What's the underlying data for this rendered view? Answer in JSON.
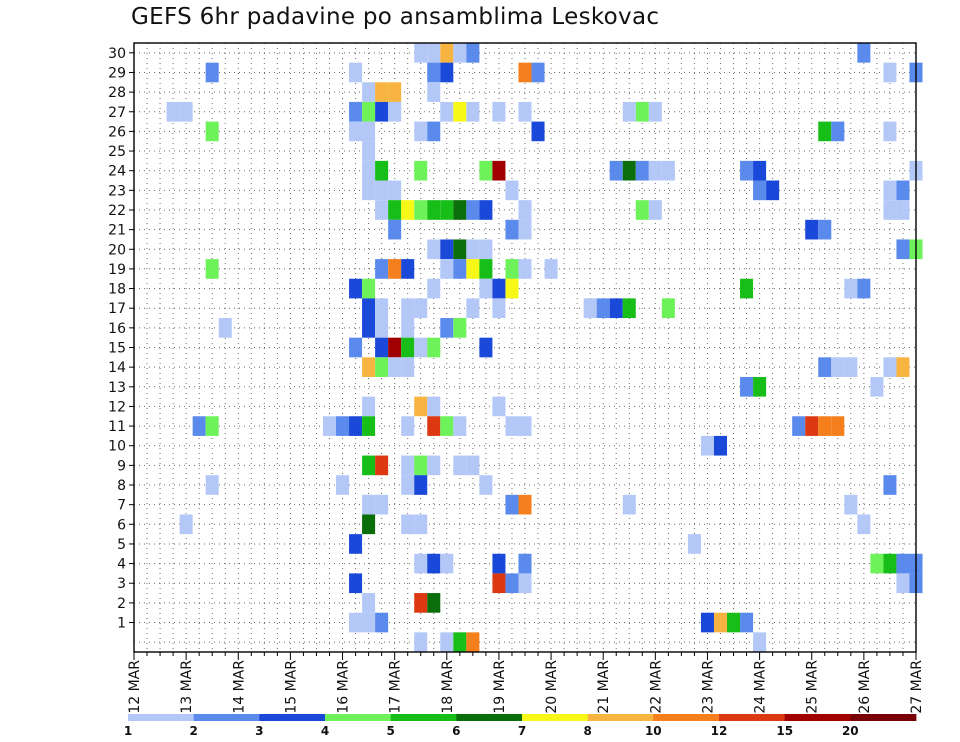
{
  "chart_data": {
    "type": "heatmap",
    "title": "GEFS 6hr padavine po ansamblima Leskovac",
    "xlabel": "",
    "ylabel": "",
    "x_ticks": [
      "12 MAR",
      "13 MAR",
      "14 MAR",
      "15 MAR",
      "16 MAR",
      "17 MAR",
      "18 MAR",
      "19 MAR",
      "20 MAR",
      "21 MAR",
      "22 MAR",
      "23 MAR",
      "24 MAR",
      "25 MAR",
      "26 MAR",
      "27 MAR"
    ],
    "x_range_steps": [
      0,
      60
    ],
    "steps_per_day": 4,
    "members": [
      1,
      2,
      3,
      4,
      5,
      6,
      7,
      8,
      9,
      10,
      11,
      12,
      13,
      14,
      15,
      16,
      17,
      18,
      19,
      20,
      21,
      22,
      23,
      24,
      25,
      26,
      27,
      28,
      29,
      30
    ],
    "grid": true,
    "colorbar": {
      "position": "bottom",
      "labels": [
        "1",
        "2",
        "3",
        "4",
        "5",
        "6",
        "7",
        "8",
        "10",
        "12",
        "15",
        "20"
      ],
      "colors": [
        "#b4c8f8",
        "#5a8aec",
        "#1a48d8",
        "#6ef25a",
        "#18be18",
        "#0a6e0a",
        "#f8f818",
        "#f8b440",
        "#f47f1c",
        "#dc3812",
        "#a00000",
        "#7a0008"
      ]
    },
    "cells": [
      {
        "member": 30,
        "step": 22,
        "cls": 1
      },
      {
        "member": 30,
        "step": 23,
        "cls": 1
      },
      {
        "member": 30,
        "step": 24,
        "cls": 8
      },
      {
        "member": 30,
        "step": 25,
        "cls": 1
      },
      {
        "member": 30,
        "step": 26,
        "cls": 2
      },
      {
        "member": 30,
        "step": 56,
        "cls": 2
      },
      {
        "member": 29,
        "step": 6,
        "cls": 2
      },
      {
        "member": 29,
        "step": 17,
        "cls": 1
      },
      {
        "member": 29,
        "step": 23,
        "cls": 2
      },
      {
        "member": 29,
        "step": 24,
        "cls": 3
      },
      {
        "member": 29,
        "step": 30,
        "cls": 9
      },
      {
        "member": 29,
        "step": 31,
        "cls": 2
      },
      {
        "member": 29,
        "step": 58,
        "cls": 1
      },
      {
        "member": 29,
        "step": 60,
        "cls": 2
      },
      {
        "member": 28,
        "step": 18,
        "cls": 1
      },
      {
        "member": 28,
        "step": 19,
        "cls": 8
      },
      {
        "member": 28,
        "step": 20,
        "cls": 8
      },
      {
        "member": 28,
        "step": 23,
        "cls": 1
      },
      {
        "member": 27,
        "step": 3,
        "cls": 1
      },
      {
        "member": 27,
        "step": 4,
        "cls": 1
      },
      {
        "member": 27,
        "step": 17,
        "cls": 2
      },
      {
        "member": 27,
        "step": 18,
        "cls": 4
      },
      {
        "member": 27,
        "step": 19,
        "cls": 3
      },
      {
        "member": 27,
        "step": 20,
        "cls": 1
      },
      {
        "member": 27,
        "step": 24,
        "cls": 1
      },
      {
        "member": 27,
        "step": 25,
        "cls": 7
      },
      {
        "member": 27,
        "step": 26,
        "cls": 1
      },
      {
        "member": 27,
        "step": 28,
        "cls": 1
      },
      {
        "member": 27,
        "step": 30,
        "cls": 1
      },
      {
        "member": 27,
        "step": 38,
        "cls": 1
      },
      {
        "member": 27,
        "step": 39,
        "cls": 4
      },
      {
        "member": 27,
        "step": 40,
        "cls": 1
      },
      {
        "member": 26,
        "step": 6,
        "cls": 4
      },
      {
        "member": 26,
        "step": 17,
        "cls": 1
      },
      {
        "member": 26,
        "step": 18,
        "cls": 1
      },
      {
        "member": 26,
        "step": 22,
        "cls": 1
      },
      {
        "member": 26,
        "step": 23,
        "cls": 2
      },
      {
        "member": 26,
        "step": 31,
        "cls": 3
      },
      {
        "member": 26,
        "step": 53,
        "cls": 5
      },
      {
        "member": 26,
        "step": 54,
        "cls": 2
      },
      {
        "member": 26,
        "step": 58,
        "cls": 1
      },
      {
        "member": 25,
        "step": 18,
        "cls": 1
      },
      {
        "member": 24,
        "step": 18,
        "cls": 1
      },
      {
        "member": 24,
        "step": 19,
        "cls": 5
      },
      {
        "member": 24,
        "step": 22,
        "cls": 4
      },
      {
        "member": 24,
        "step": 27,
        "cls": 4
      },
      {
        "member": 24,
        "step": 28,
        "cls": 11
      },
      {
        "member": 24,
        "step": 37,
        "cls": 2
      },
      {
        "member": 24,
        "step": 38,
        "cls": 6
      },
      {
        "member": 24,
        "step": 39,
        "cls": 2
      },
      {
        "member": 24,
        "step": 40,
        "cls": 1
      },
      {
        "member": 24,
        "step": 41,
        "cls": 1
      },
      {
        "member": 24,
        "step": 47,
        "cls": 2
      },
      {
        "member": 24,
        "step": 48,
        "cls": 3
      },
      {
        "member": 24,
        "step": 60,
        "cls": 1
      },
      {
        "member": 23,
        "step": 18,
        "cls": 1
      },
      {
        "member": 23,
        "step": 19,
        "cls": 1
      },
      {
        "member": 23,
        "step": 20,
        "cls": 1
      },
      {
        "member": 23,
        "step": 29,
        "cls": 1
      },
      {
        "member": 23,
        "step": 48,
        "cls": 2
      },
      {
        "member": 23,
        "step": 49,
        "cls": 3
      },
      {
        "member": 23,
        "step": 58,
        "cls": 1
      },
      {
        "member": 23,
        "step": 59,
        "cls": 2
      },
      {
        "member": 22,
        "step": 19,
        "cls": 1
      },
      {
        "member": 22,
        "step": 20,
        "cls": 5
      },
      {
        "member": 22,
        "step": 21,
        "cls": 7
      },
      {
        "member": 22,
        "step": 22,
        "cls": 4
      },
      {
        "member": 22,
        "step": 23,
        "cls": 5
      },
      {
        "member": 22,
        "step": 24,
        "cls": 5
      },
      {
        "member": 22,
        "step": 25,
        "cls": 6
      },
      {
        "member": 22,
        "step": 26,
        "cls": 2
      },
      {
        "member": 22,
        "step": 27,
        "cls": 3
      },
      {
        "member": 22,
        "step": 30,
        "cls": 1
      },
      {
        "member": 22,
        "step": 39,
        "cls": 4
      },
      {
        "member": 22,
        "step": 40,
        "cls": 1
      },
      {
        "member": 22,
        "step": 58,
        "cls": 1
      },
      {
        "member": 22,
        "step": 59,
        "cls": 1
      },
      {
        "member": 21,
        "step": 20,
        "cls": 2
      },
      {
        "member": 21,
        "step": 29,
        "cls": 2
      },
      {
        "member": 21,
        "step": 30,
        "cls": 1
      },
      {
        "member": 21,
        "step": 52,
        "cls": 3
      },
      {
        "member": 21,
        "step": 53,
        "cls": 2
      },
      {
        "member": 20,
        "step": 23,
        "cls": 1
      },
      {
        "member": 20,
        "step": 24,
        "cls": 3
      },
      {
        "member": 20,
        "step": 25,
        "cls": 6
      },
      {
        "member": 20,
        "step": 26,
        "cls": 1
      },
      {
        "member": 20,
        "step": 27,
        "cls": 1
      },
      {
        "member": 20,
        "step": 59,
        "cls": 2
      },
      {
        "member": 20,
        "step": 60,
        "cls": 4
      },
      {
        "member": 19,
        "step": 6,
        "cls": 4
      },
      {
        "member": 19,
        "step": 19,
        "cls": 2
      },
      {
        "member": 19,
        "step": 20,
        "cls": 9
      },
      {
        "member": 19,
        "step": 21,
        "cls": 3
      },
      {
        "member": 19,
        "step": 24,
        "cls": 1
      },
      {
        "member": 19,
        "step": 25,
        "cls": 2
      },
      {
        "member": 19,
        "step": 26,
        "cls": 7
      },
      {
        "member": 19,
        "step": 27,
        "cls": 5
      },
      {
        "member": 19,
        "step": 29,
        "cls": 4
      },
      {
        "member": 19,
        "step": 30,
        "cls": 1
      },
      {
        "member": 19,
        "step": 32,
        "cls": 1
      },
      {
        "member": 18,
        "step": 17,
        "cls": 3
      },
      {
        "member": 18,
        "step": 18,
        "cls": 4
      },
      {
        "member": 18,
        "step": 23,
        "cls": 1
      },
      {
        "member": 18,
        "step": 27,
        "cls": 1
      },
      {
        "member": 18,
        "step": 28,
        "cls": 3
      },
      {
        "member": 18,
        "step": 29,
        "cls": 7
      },
      {
        "member": 18,
        "step": 47,
        "cls": 5
      },
      {
        "member": 18,
        "step": 55,
        "cls": 1
      },
      {
        "member": 18,
        "step": 56,
        "cls": 2
      },
      {
        "member": 17,
        "step": 18,
        "cls": 3
      },
      {
        "member": 17,
        "step": 19,
        "cls": 1
      },
      {
        "member": 17,
        "step": 21,
        "cls": 1
      },
      {
        "member": 17,
        "step": 22,
        "cls": 1
      },
      {
        "member": 17,
        "step": 26,
        "cls": 1
      },
      {
        "member": 17,
        "step": 28,
        "cls": 1
      },
      {
        "member": 17,
        "step": 35,
        "cls": 1
      },
      {
        "member": 17,
        "step": 36,
        "cls": 2
      },
      {
        "member": 17,
        "step": 37,
        "cls": 3
      },
      {
        "member": 17,
        "step": 38,
        "cls": 5
      },
      {
        "member": 17,
        "step": 41,
        "cls": 4
      },
      {
        "member": 16,
        "step": 7,
        "cls": 1
      },
      {
        "member": 16,
        "step": 18,
        "cls": 3
      },
      {
        "member": 16,
        "step": 19,
        "cls": 1
      },
      {
        "member": 16,
        "step": 21,
        "cls": 1
      },
      {
        "member": 16,
        "step": 24,
        "cls": 2
      },
      {
        "member": 16,
        "step": 25,
        "cls": 4
      },
      {
        "member": 15,
        "step": 17,
        "cls": 2
      },
      {
        "member": 15,
        "step": 19,
        "cls": 3
      },
      {
        "member": 15,
        "step": 20,
        "cls": 11
      },
      {
        "member": 15,
        "step": 21,
        "cls": 5
      },
      {
        "member": 15,
        "step": 22,
        "cls": 1
      },
      {
        "member": 15,
        "step": 23,
        "cls": 4
      },
      {
        "member": 15,
        "step": 27,
        "cls": 3
      },
      {
        "member": 14,
        "step": 18,
        "cls": 8
      },
      {
        "member": 14,
        "step": 19,
        "cls": 4
      },
      {
        "member": 14,
        "step": 20,
        "cls": 1
      },
      {
        "member": 14,
        "step": 21,
        "cls": 1
      },
      {
        "member": 14,
        "step": 53,
        "cls": 2
      },
      {
        "member": 14,
        "step": 54,
        "cls": 1
      },
      {
        "member": 14,
        "step": 55,
        "cls": 1
      },
      {
        "member": 14,
        "step": 58,
        "cls": 1
      },
      {
        "member": 14,
        "step": 59,
        "cls": 8
      },
      {
        "member": 13,
        "step": 47,
        "cls": 2
      },
      {
        "member": 13,
        "step": 48,
        "cls": 5
      },
      {
        "member": 13,
        "step": 57,
        "cls": 1
      },
      {
        "member": 12,
        "step": 18,
        "cls": 1
      },
      {
        "member": 12,
        "step": 22,
        "cls": 8
      },
      {
        "member": 12,
        "step": 23,
        "cls": 1
      },
      {
        "member": 12,
        "step": 28,
        "cls": 1
      },
      {
        "member": 11,
        "step": 5,
        "cls": 2
      },
      {
        "member": 11,
        "step": 6,
        "cls": 4
      },
      {
        "member": 11,
        "step": 15,
        "cls": 1
      },
      {
        "member": 11,
        "step": 16,
        "cls": 2
      },
      {
        "member": 11,
        "step": 17,
        "cls": 3
      },
      {
        "member": 11,
        "step": 18,
        "cls": 5
      },
      {
        "member": 11,
        "step": 21,
        "cls": 1
      },
      {
        "member": 11,
        "step": 23,
        "cls": 10
      },
      {
        "member": 11,
        "step": 24,
        "cls": 4
      },
      {
        "member": 11,
        "step": 25,
        "cls": 1
      },
      {
        "member": 11,
        "step": 29,
        "cls": 1
      },
      {
        "member": 11,
        "step": 30,
        "cls": 1
      },
      {
        "member": 11,
        "step": 51,
        "cls": 2
      },
      {
        "member": 11,
        "step": 52,
        "cls": 10
      },
      {
        "member": 11,
        "step": 53,
        "cls": 9
      },
      {
        "member": 11,
        "step": 54,
        "cls": 9
      },
      {
        "member": 10,
        "step": 44,
        "cls": 1
      },
      {
        "member": 10,
        "step": 45,
        "cls": 3
      },
      {
        "member": 9,
        "step": 18,
        "cls": 5
      },
      {
        "member": 9,
        "step": 19,
        "cls": 10
      },
      {
        "member": 9,
        "step": 21,
        "cls": 1
      },
      {
        "member": 9,
        "step": 22,
        "cls": 4
      },
      {
        "member": 9,
        "step": 23,
        "cls": 1
      },
      {
        "member": 9,
        "step": 25,
        "cls": 1
      },
      {
        "member": 9,
        "step": 26,
        "cls": 1
      },
      {
        "member": 8,
        "step": 6,
        "cls": 1
      },
      {
        "member": 8,
        "step": 16,
        "cls": 1
      },
      {
        "member": 8,
        "step": 21,
        "cls": 1
      },
      {
        "member": 8,
        "step": 22,
        "cls": 3
      },
      {
        "member": 8,
        "step": 27,
        "cls": 1
      },
      {
        "member": 8,
        "step": 58,
        "cls": 2
      },
      {
        "member": 7,
        "step": 18,
        "cls": 1
      },
      {
        "member": 7,
        "step": 19,
        "cls": 1
      },
      {
        "member": 7,
        "step": 29,
        "cls": 2
      },
      {
        "member": 7,
        "step": 30,
        "cls": 9
      },
      {
        "member": 7,
        "step": 38,
        "cls": 1
      },
      {
        "member": 7,
        "step": 55,
        "cls": 1
      },
      {
        "member": 6,
        "step": 4,
        "cls": 1
      },
      {
        "member": 6,
        "step": 18,
        "cls": 6
      },
      {
        "member": 6,
        "step": 21,
        "cls": 1
      },
      {
        "member": 6,
        "step": 22,
        "cls": 1
      },
      {
        "member": 6,
        "step": 56,
        "cls": 1
      },
      {
        "member": 5,
        "step": 17,
        "cls": 3
      },
      {
        "member": 5,
        "step": 43,
        "cls": 1
      },
      {
        "member": 4,
        "step": 22,
        "cls": 1
      },
      {
        "member": 4,
        "step": 23,
        "cls": 3
      },
      {
        "member": 4,
        "step": 24,
        "cls": 1
      },
      {
        "member": 4,
        "step": 28,
        "cls": 3
      },
      {
        "member": 4,
        "step": 30,
        "cls": 2
      },
      {
        "member": 4,
        "step": 57,
        "cls": 4
      },
      {
        "member": 4,
        "step": 58,
        "cls": 5
      },
      {
        "member": 4,
        "step": 59,
        "cls": 2
      },
      {
        "member": 4,
        "step": 60,
        "cls": 2
      },
      {
        "member": 3,
        "step": 17,
        "cls": 3
      },
      {
        "member": 3,
        "step": 28,
        "cls": 10
      },
      {
        "member": 3,
        "step": 29,
        "cls": 2
      },
      {
        "member": 3,
        "step": 30,
        "cls": 1
      },
      {
        "member": 3,
        "step": 59,
        "cls": 1
      },
      {
        "member": 3,
        "step": 60,
        "cls": 2
      },
      {
        "member": 2,
        "step": 18,
        "cls": 1
      },
      {
        "member": 2,
        "step": 22,
        "cls": 10
      },
      {
        "member": 2,
        "step": 23,
        "cls": 6
      },
      {
        "member": 1,
        "step": 17,
        "cls": 1
      },
      {
        "member": 1,
        "step": 18,
        "cls": 1
      },
      {
        "member": 1,
        "step": 19,
        "cls": 2
      },
      {
        "member": 1,
        "step": 44,
        "cls": 3
      },
      {
        "member": 1,
        "step": 45,
        "cls": 8
      },
      {
        "member": 1,
        "step": 46,
        "cls": 5
      },
      {
        "member": 1,
        "step": 47,
        "cls": 2
      },
      {
        "member": 0,
        "step": 22,
        "cls": 1
      },
      {
        "member": 0,
        "step": 24,
        "cls": 1
      },
      {
        "member": 0,
        "step": 25,
        "cls": 5
      },
      {
        "member": 0,
        "step": 26,
        "cls": 9
      },
      {
        "member": 0,
        "step": 48,
        "cls": 1
      }
    ]
  }
}
